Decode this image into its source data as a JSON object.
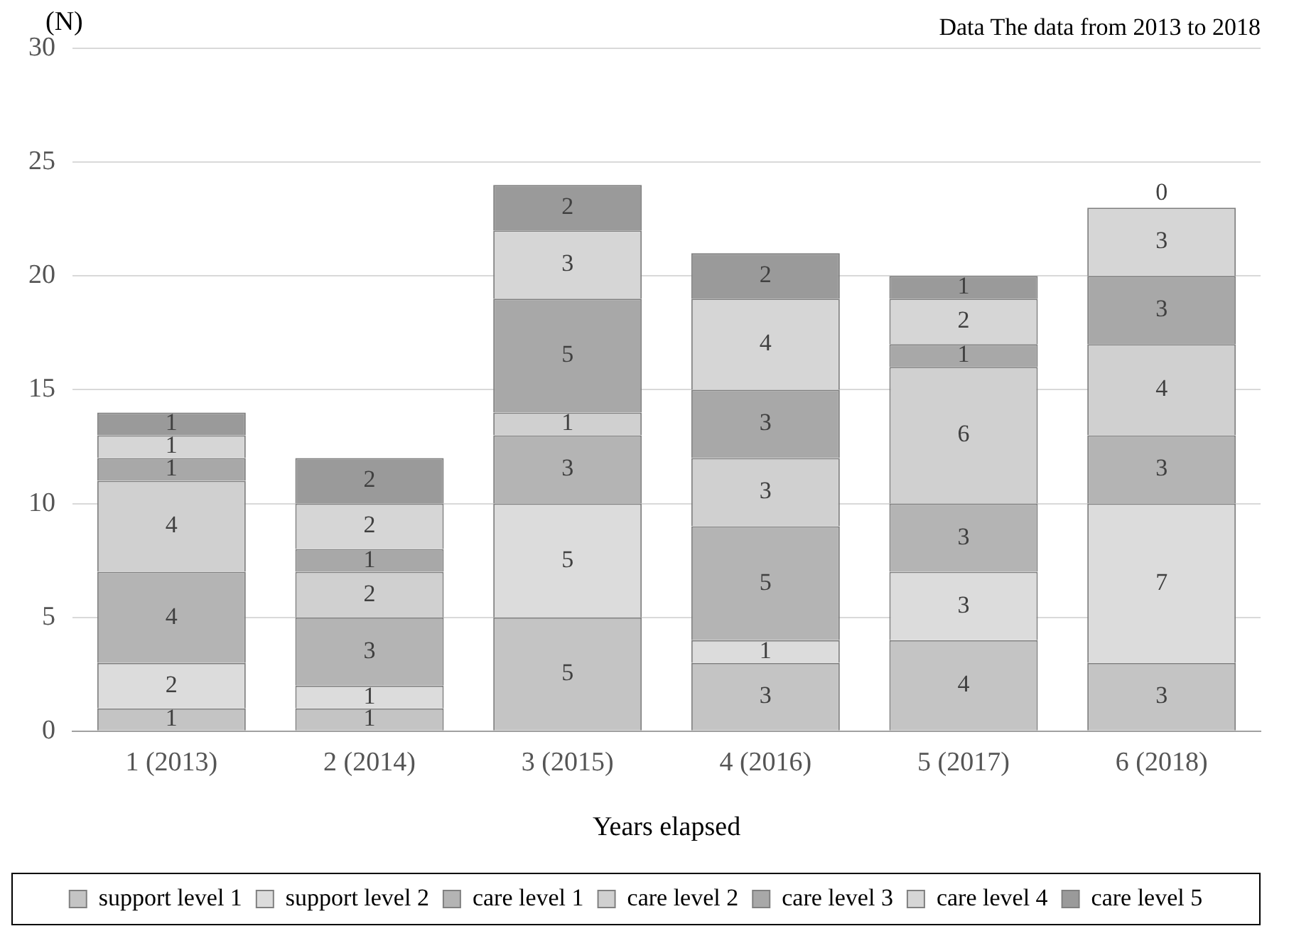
{
  "chart_data": {
    "type": "bar",
    "stacked": true,
    "ylabel": "(N)",
    "xlabel": "Years elapsed",
    "annotations": [
      "Data The data from 2013 to 2018"
    ],
    "categories": [
      "1 (2013)",
      "2 (2014)",
      "3 (2015)",
      "4 (2016)",
      "5 (2017)",
      "6 (2018)"
    ],
    "ylim": [
      0,
      30
    ],
    "yticks": [
      0,
      5,
      10,
      15,
      20,
      25,
      30
    ],
    "grid": "y",
    "legend": "bottom",
    "data_labels": true,
    "series": [
      {
        "name": "support level 1",
        "color": "#c4c4c4",
        "values": [
          1,
          1,
          5,
          3,
          4,
          3
        ]
      },
      {
        "name": "support level 2",
        "color": "#dcdcdc",
        "values": [
          2,
          1,
          5,
          1,
          3,
          7
        ]
      },
      {
        "name": "care level 1",
        "color": "#b4b4b4",
        "values": [
          4,
          3,
          3,
          5,
          3,
          3
        ]
      },
      {
        "name": "care level 2",
        "color": "#d0d0d0",
        "values": [
          4,
          2,
          1,
          3,
          6,
          4
        ]
      },
      {
        "name": "care level 3",
        "color": "#a8a8a8",
        "values": [
          1,
          1,
          5,
          3,
          1,
          3
        ]
      },
      {
        "name": "care level 4",
        "color": "#d6d6d6",
        "values": [
          1,
          2,
          3,
          4,
          2,
          3
        ]
      },
      {
        "name": "care level 5",
        "color": "#9a9a9a",
        "values": [
          1,
          2,
          2,
          2,
          1,
          0
        ]
      }
    ]
  }
}
